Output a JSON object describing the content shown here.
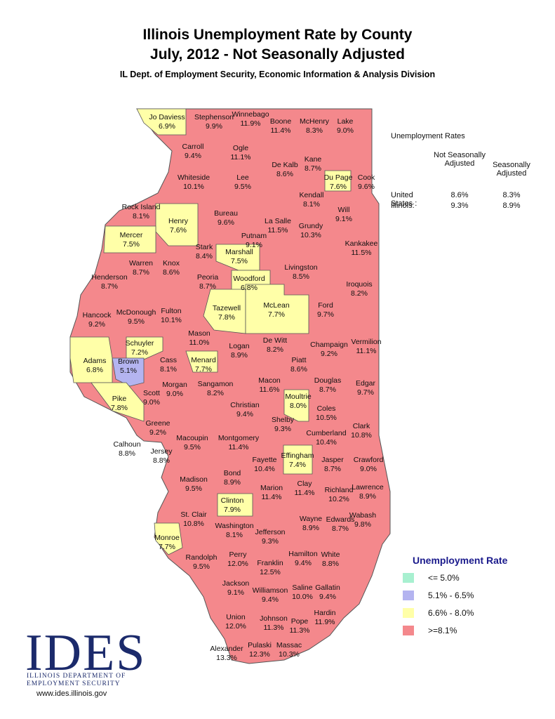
{
  "header": {
    "title": "Illinois Unemployment Rate by County",
    "subtitle": "July, 2012 - Not Seasonally Adjusted",
    "source": "IL Dept. of Employment Security, Economic Information & Analysis Division"
  },
  "map": {
    "counties": [
      {
        "name": "Jo Daviess",
        "rate": "6.9%",
        "color": "#ffffa8"
      },
      {
        "name": "Stephenson",
        "rate": "9.9%",
        "color": "#f4888c"
      },
      {
        "name": "Winnebago",
        "rate": "11.9%",
        "color": "#f4888c"
      },
      {
        "name": "Boone",
        "rate": "11.4%",
        "color": "#f4888c"
      },
      {
        "name": "McHenry",
        "rate": "8.3%",
        "color": "#f4888c"
      },
      {
        "name": "Lake",
        "rate": "9.0%",
        "color": "#f4888c"
      },
      {
        "name": "Carroll",
        "rate": "9.4%",
        "color": "#f4888c"
      },
      {
        "name": "Ogle",
        "rate": "11.1%",
        "color": "#f4888c"
      },
      {
        "name": "De Kalb",
        "rate": "8.6%",
        "color": "#f4888c"
      },
      {
        "name": "Kane",
        "rate": "8.7%",
        "color": "#f4888c"
      },
      {
        "name": "Du Page",
        "rate": "7.6%",
        "color": "#ffffa8"
      },
      {
        "name": "Cook",
        "rate": "9.6%",
        "color": "#f4888c"
      },
      {
        "name": "Whiteside",
        "rate": "10.1%",
        "color": "#f4888c"
      },
      {
        "name": "Lee",
        "rate": "9.5%",
        "color": "#f4888c"
      },
      {
        "name": "Kendall",
        "rate": "8.1%",
        "color": "#f4888c"
      },
      {
        "name": "Will",
        "rate": "9.1%",
        "color": "#f4888c"
      },
      {
        "name": "Rock Island",
        "rate": "8.1%",
        "color": "#f4888c"
      },
      {
        "name": "Henry",
        "rate": "7.6%",
        "color": "#ffffa8"
      },
      {
        "name": "Bureau",
        "rate": "9.6%",
        "color": "#f4888c"
      },
      {
        "name": "La Salle",
        "rate": "11.5%",
        "color": "#f4888c"
      },
      {
        "name": "Grundy",
        "rate": "10.3%",
        "color": "#f4888c"
      },
      {
        "name": "Mercer",
        "rate": "7.5%",
        "color": "#ffffa8"
      },
      {
        "name": "Putnam",
        "rate": "9.1%",
        "color": "#f4888c"
      },
      {
        "name": "Kankakee",
        "rate": "11.5%",
        "color": "#f4888c"
      },
      {
        "name": "Stark",
        "rate": "8.4%",
        "color": "#f4888c"
      },
      {
        "name": "Marshall",
        "rate": "7.5%",
        "color": "#ffffa8"
      },
      {
        "name": "Warren",
        "rate": "8.7%",
        "color": "#f4888c"
      },
      {
        "name": "Knox",
        "rate": "8.6%",
        "color": "#f4888c"
      },
      {
        "name": "Livingston",
        "rate": "8.5%",
        "color": "#f4888c"
      },
      {
        "name": "Henderson",
        "rate": "8.7%",
        "color": "#f4888c"
      },
      {
        "name": "Peoria",
        "rate": "8.7%",
        "color": "#f4888c"
      },
      {
        "name": "Woodford",
        "rate": "6.8%",
        "color": "#ffffa8"
      },
      {
        "name": "Iroquois",
        "rate": "8.2%",
        "color": "#f4888c"
      },
      {
        "name": "Hancock",
        "rate": "9.2%",
        "color": "#f4888c"
      },
      {
        "name": "McDonough",
        "rate": "9.5%",
        "color": "#f4888c"
      },
      {
        "name": "Fulton",
        "rate": "10.1%",
        "color": "#f4888c"
      },
      {
        "name": "Tazewell",
        "rate": "7.8%",
        "color": "#ffffa8"
      },
      {
        "name": "McLean",
        "rate": "7.7%",
        "color": "#ffffa8"
      },
      {
        "name": "Ford",
        "rate": "9.7%",
        "color": "#f4888c"
      },
      {
        "name": "Vermilion",
        "rate": "11.1%",
        "color": "#f4888c"
      },
      {
        "name": "Schuyler",
        "rate": "7.2%",
        "color": "#ffffa8"
      },
      {
        "name": "Mason",
        "rate": "11.0%",
        "color": "#f4888c"
      },
      {
        "name": "Logan",
        "rate": "8.9%",
        "color": "#f4888c"
      },
      {
        "name": "De Witt",
        "rate": "8.2%",
        "color": "#f4888c"
      },
      {
        "name": "Champaign",
        "rate": "9.2%",
        "color": "#f4888c"
      },
      {
        "name": "Adams",
        "rate": "6.8%",
        "color": "#ffffa8"
      },
      {
        "name": "Brown",
        "rate": "5.1%",
        "color": "#b4b4f0"
      },
      {
        "name": "Cass",
        "rate": "8.1%",
        "color": "#f4888c"
      },
      {
        "name": "Menard",
        "rate": "7.7%",
        "color": "#ffffa8"
      },
      {
        "name": "Piatt",
        "rate": "8.6%",
        "color": "#f4888c"
      },
      {
        "name": "Macon",
        "rate": "11.6%",
        "color": "#f4888c"
      },
      {
        "name": "Douglas",
        "rate": "8.7%",
        "color": "#f4888c"
      },
      {
        "name": "Edgar",
        "rate": "9.7%",
        "color": "#f4888c"
      },
      {
        "name": "Morgan",
        "rate": "9.0%",
        "color": "#f4888c"
      },
      {
        "name": "Sangamon",
        "rate": "8.2%",
        "color": "#f4888c"
      },
      {
        "name": "Scott",
        "rate": "9.0%",
        "color": "#f4888c"
      },
      {
        "name": "Moultrie",
        "rate": "8.0%",
        "color": "#ffffa8"
      },
      {
        "name": "Pike",
        "rate": "7.8%",
        "color": "#ffffa8"
      },
      {
        "name": "Christian",
        "rate": "9.4%",
        "color": "#f4888c"
      },
      {
        "name": "Coles",
        "rate": "10.5%",
        "color": "#f4888c"
      },
      {
        "name": "Shelby",
        "rate": "9.3%",
        "color": "#f4888c"
      },
      {
        "name": "Clark",
        "rate": "10.8%",
        "color": "#f4888c"
      },
      {
        "name": "Greene",
        "rate": "9.2%",
        "color": "#f4888c"
      },
      {
        "name": "Macoupin",
        "rate": "9.5%",
        "color": "#f4888c"
      },
      {
        "name": "Montgomery",
        "rate": "11.4%",
        "color": "#f4888c"
      },
      {
        "name": "Cumberland",
        "rate": "10.4%",
        "color": "#f4888c"
      },
      {
        "name": "Calhoun",
        "rate": "8.8%",
        "color": "#f4888c"
      },
      {
        "name": "Jersey",
        "rate": "8.8%",
        "color": "#f4888c"
      },
      {
        "name": "Effingham",
        "rate": "7.4%",
        "color": "#ffffa8"
      },
      {
        "name": "Fayette",
        "rate": "10.4%",
        "color": "#f4888c"
      },
      {
        "name": "Jasper",
        "rate": "8.7%",
        "color": "#f4888c"
      },
      {
        "name": "Crawford",
        "rate": "9.0%",
        "color": "#f4888c"
      },
      {
        "name": "Madison",
        "rate": "9.5%",
        "color": "#f4888c"
      },
      {
        "name": "Bond",
        "rate": "8.9%",
        "color": "#f4888c"
      },
      {
        "name": "Marion",
        "rate": "11.4%",
        "color": "#f4888c"
      },
      {
        "name": "Clay",
        "rate": "11.4%",
        "color": "#f4888c"
      },
      {
        "name": "Richland",
        "rate": "10.2%",
        "color": "#f4888c"
      },
      {
        "name": "Lawrence",
        "rate": "8.9%",
        "color": "#f4888c"
      },
      {
        "name": "Clinton",
        "rate": "7.9%",
        "color": "#ffffa8"
      },
      {
        "name": "St. Clair",
        "rate": "10.8%",
        "color": "#f4888c"
      },
      {
        "name": "Washington",
        "rate": "8.1%",
        "color": "#f4888c"
      },
      {
        "name": "Wayne",
        "rate": "8.9%",
        "color": "#f4888c"
      },
      {
        "name": "Edwards",
        "rate": "8.7%",
        "color": "#f4888c"
      },
      {
        "name": "Wabash",
        "rate": "9.8%",
        "color": "#f4888c"
      },
      {
        "name": "Jefferson",
        "rate": "9.3%",
        "color": "#f4888c"
      },
      {
        "name": "Monroe",
        "rate": "7.7%",
        "color": "#ffffa8"
      },
      {
        "name": "Randolph",
        "rate": "9.5%",
        "color": "#f4888c"
      },
      {
        "name": "Perry",
        "rate": "12.0%",
        "color": "#f4888c"
      },
      {
        "name": "Hamilton",
        "rate": "9.4%",
        "color": "#f4888c"
      },
      {
        "name": "White",
        "rate": "8.8%",
        "color": "#f4888c"
      },
      {
        "name": "Franklin",
        "rate": "12.5%",
        "color": "#f4888c"
      },
      {
        "name": "Jackson",
        "rate": "9.1%",
        "color": "#f4888c"
      },
      {
        "name": "Williamson",
        "rate": "9.4%",
        "color": "#f4888c"
      },
      {
        "name": "Saline",
        "rate": "10.0%",
        "color": "#f4888c"
      },
      {
        "name": "Gallatin",
        "rate": "9.4%",
        "color": "#f4888c"
      },
      {
        "name": "Hardin",
        "rate": "11.9%",
        "color": "#f4888c"
      },
      {
        "name": "Union",
        "rate": "12.0%",
        "color": "#f4888c"
      },
      {
        "name": "Johnson",
        "rate": "11.3%",
        "color": "#f4888c"
      },
      {
        "name": "Pope",
        "rate": "11.3%",
        "color": "#f4888c"
      },
      {
        "name": "Alexander",
        "rate": "13.3%",
        "color": "#f4888c"
      },
      {
        "name": "Pulaski",
        "rate": "12.3%",
        "color": "#f4888c"
      },
      {
        "name": "Massac",
        "rate": "10.3%",
        "color": "#f4888c"
      }
    ]
  },
  "rates_table": {
    "title": "Unemployment Rates",
    "columns": [
      "Not Seasonally Adjusted",
      "Seasonally Adjusted"
    ],
    "rows": [
      [
        "United States :",
        "8.6%",
        "8.3%"
      ],
      [
        "Illinois:",
        "9.3%",
        "8.9%"
      ]
    ]
  },
  "legend": {
    "title": "Unemployment Rate",
    "items": [
      {
        "label": "<= 5.0%",
        "color": "#a8f0d0"
      },
      {
        "label": "5.1% - 6.5%",
        "color": "#b4b4f0"
      },
      {
        "label": "6.6% - 8.0%",
        "color": "#ffffa8"
      },
      {
        "label": ">=8.1%",
        "color": "#f4888c"
      }
    ]
  },
  "logo": {
    "mark": "IDES",
    "line1": "ILLINOIS DEPARTMENT OF",
    "line2": "EMPLOYMENT SECURITY",
    "url": "www.ides.illinois.gov"
  }
}
